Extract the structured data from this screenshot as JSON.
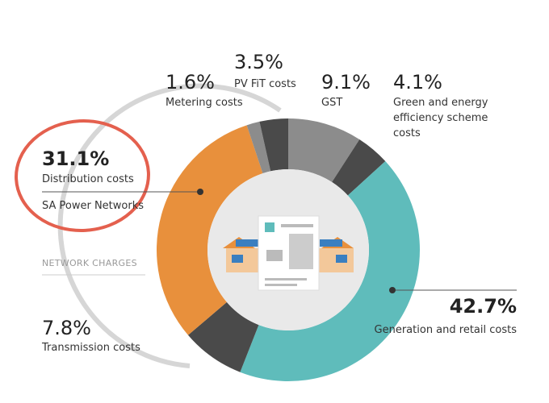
{
  "chart_data": {
    "type": "donut",
    "categories": [
      "GST",
      "Green and energy efficiency scheme costs",
      "Generation and retail costs",
      "Transmission costs",
      "Distribution costs",
      "Metering costs",
      "PV FiT costs"
    ],
    "values": [
      9.1,
      4.1,
      42.7,
      7.8,
      31.1,
      1.6,
      3.5
    ],
    "value_labels": [
      "9.1%",
      "4.1%",
      "42.7%",
      "7.8%",
      "31.1%",
      "1.6%",
      "3.5%"
    ],
    "colors": [
      "#8c8c8c",
      "#4a4a4a",
      "#5fbcbb",
      "#4a4a4a",
      "#e8903c",
      "#8c8c8c",
      "#4a4a4a"
    ],
    "annotations": [
      "SA Power Networks",
      "NETWORK CHARGES"
    ]
  }
}
